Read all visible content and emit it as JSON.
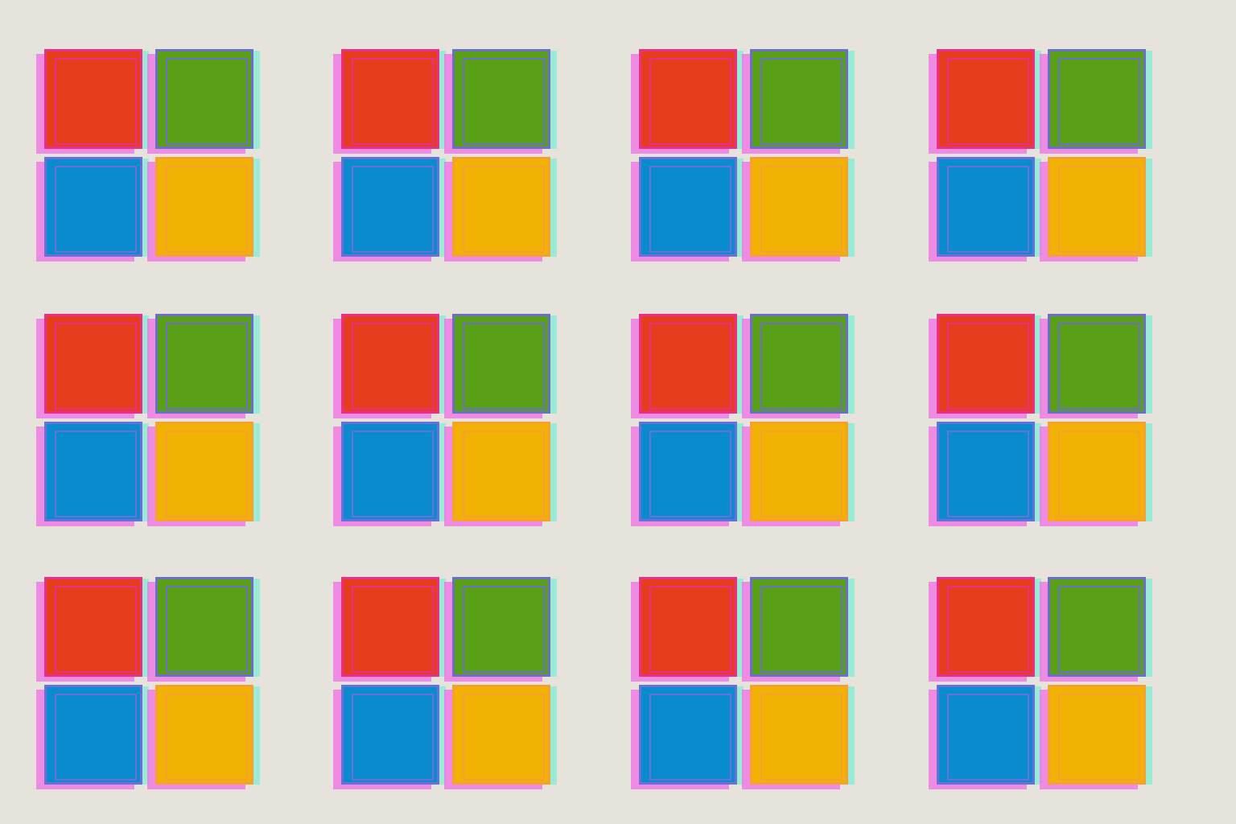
{
  "grid": {
    "rows": 3,
    "columns": 4
  },
  "logo": {
    "squares": [
      {
        "name": "red",
        "color": "#e63e1c",
        "edge": "#e8308a"
      },
      {
        "name": "green",
        "color": "#5aa016",
        "edge": "#6b6fc8"
      },
      {
        "name": "blue",
        "color": "#0a8bd0",
        "edge": "#6b6fd8"
      },
      {
        "name": "yellow",
        "color": "#f2b203",
        "edge": "#f5a030"
      }
    ]
  },
  "background_color": "#e6e2dc"
}
